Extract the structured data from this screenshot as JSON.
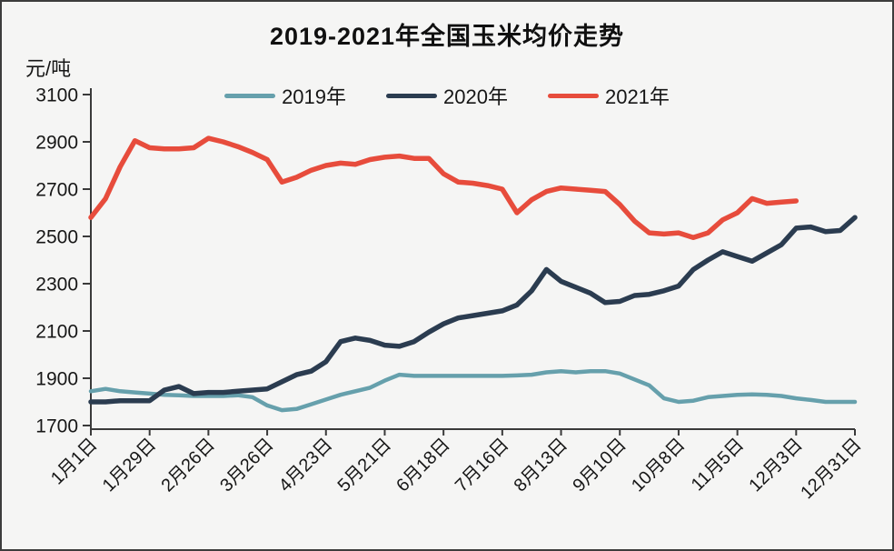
{
  "title": "2019-2021年全国玉米均价走势",
  "y_axis": {
    "unit": "元/吨",
    "ticks": [
      3100,
      2900,
      2700,
      2500,
      2300,
      2100,
      1900,
      1700
    ]
  },
  "x_axis": {
    "labels": [
      "1月1日",
      "1月29日",
      "2月26日",
      "3月26日",
      "4月23日",
      "5月21日",
      "6月18日",
      "7月16日",
      "8月13日",
      "9月10日",
      "10月8日",
      "11月5日",
      "12月3日",
      "12月31日"
    ]
  },
  "colors": {
    "teal_2019": "#66a0ac",
    "navy_2020": "#2b3c50",
    "red_2021": "#e74c3c",
    "axis": "#3a3a3a",
    "background": "#f5f5f4",
    "text": "#161616"
  },
  "chart_data": {
    "type": "line",
    "title": "2019-2021年全国玉米均价走势",
    "ylabel": "元/吨",
    "ylim": [
      1700,
      3100
    ],
    "y_tick_step": 200,
    "grid": false,
    "legend_position": "top",
    "x": [
      "1月1日",
      "1月8日",
      "1月15日",
      "1月22日",
      "1月29日",
      "2月5日",
      "2月12日",
      "2月19日",
      "2月26日",
      "3月5日",
      "3月12日",
      "3月19日",
      "3月26日",
      "4月2日",
      "4月9日",
      "4月16日",
      "4月23日",
      "4月30日",
      "5月7日",
      "5月14日",
      "5月21日",
      "5月28日",
      "6月4日",
      "6月11日",
      "6月18日",
      "6月25日",
      "7月2日",
      "7月9日",
      "7月16日",
      "7月23日",
      "7月30日",
      "8月6日",
      "8月13日",
      "8月20日",
      "8月27日",
      "9月3日",
      "9月10日",
      "9月17日",
      "9月24日",
      "10月1日",
      "10月8日",
      "10月15日",
      "10月22日",
      "10月29日",
      "11月5日",
      "11月12日",
      "11月19日",
      "11月26日",
      "12月3日",
      "12月10日",
      "12月17日",
      "12月24日",
      "12月31日"
    ],
    "labeled_week_indices": [
      0,
      4,
      8,
      12,
      16,
      20,
      24,
      28,
      32,
      36,
      40,
      44,
      48,
      52
    ],
    "series": [
      {
        "name": "2019年",
        "color": "#66a0ac",
        "stroke_width": 4.5,
        "values": [
          1845,
          1855,
          1845,
          1840,
          1835,
          1830,
          1828,
          1825,
          1825,
          1825,
          1828,
          1820,
          1785,
          1765,
          1770,
          1790,
          1810,
          1830,
          1845,
          1860,
          1890,
          1915,
          1910,
          1910,
          1910,
          1910,
          1910,
          1910,
          1910,
          1912,
          1915,
          1925,
          1930,
          1925,
          1930,
          1930,
          1920,
          1895,
          1870,
          1815,
          1800,
          1805,
          1820,
          1825,
          1830,
          1832,
          1830,
          1825,
          1815,
          1808,
          1800,
          1800,
          1800
        ]
      },
      {
        "name": "2020年",
        "color": "#2b3c50",
        "stroke_width": 5.5,
        "values": [
          1800,
          1800,
          1805,
          1805,
          1805,
          1850,
          1865,
          1835,
          1840,
          1840,
          1845,
          1850,
          1855,
          1885,
          1915,
          1930,
          1970,
          2055,
          2070,
          2060,
          2040,
          2035,
          2055,
          2095,
          2130,
          2155,
          2165,
          2175,
          2185,
          2210,
          2270,
          2360,
          2310,
          2285,
          2260,
          2220,
          2225,
          2250,
          2255,
          2270,
          2290,
          2360,
          2400,
          2435,
          2415,
          2395,
          2430,
          2465,
          2535,
          2540,
          2520,
          2525,
          2580
        ]
      },
      {
        "name": "2021年",
        "color": "#e74c3c",
        "stroke_width": 5.5,
        "values": [
          2580,
          2660,
          2795,
          2905,
          2875,
          2870,
          2870,
          2875,
          2915,
          2900,
          2880,
          2855,
          2825,
          2730,
          2750,
          2780,
          2800,
          2810,
          2805,
          2825,
          2835,
          2840,
          2830,
          2830,
          2765,
          2730,
          2725,
          2715,
          2700,
          2600,
          2655,
          2690,
          2705,
          2700,
          2695,
          2690,
          2635,
          2565,
          2515,
          2510,
          2515,
          2495,
          2515,
          2570,
          2600,
          2660,
          2640,
          2645,
          2650,
          null,
          null,
          null,
          null
        ]
      }
    ]
  }
}
